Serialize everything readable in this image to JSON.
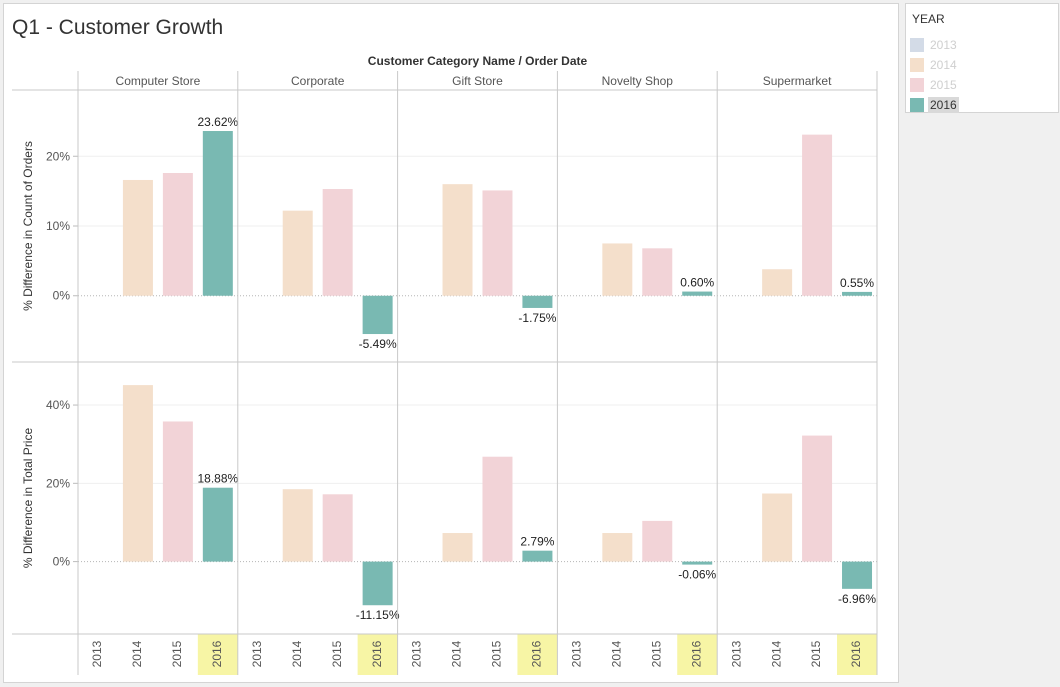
{
  "dashboard": {
    "title": "Q1 - Customer Growth"
  },
  "legend": {
    "title": "YEAR",
    "items": [
      {
        "label": "2013",
        "color": "#d3dbe7",
        "active": false
      },
      {
        "label": "2014",
        "color": "#f4dfcb",
        "active": false
      },
      {
        "label": "2015",
        "color": "#f2d3d7",
        "active": false
      },
      {
        "label": "2016",
        "color": "#79b9b2",
        "active": true
      }
    ]
  },
  "chart_data": {
    "type": "bar",
    "header": "Customer Category Name  /  Order Date",
    "panels": [
      "Computer Store",
      "Corporate",
      "Gift Store",
      "Novelty Shop",
      "Supermarket"
    ],
    "years": [
      "2013",
      "2014",
      "2015",
      "2016"
    ],
    "highlighted_year": "2016",
    "colors": {
      "2013": "#d3dbe7",
      "2014": "#f4dfcb",
      "2015": "#f2d3d7",
      "2016": "#79b9b2",
      "highlight_bg": "#f7f5a5"
    },
    "rows": [
      {
        "ylabel": "% Difference in Count of Orders",
        "ylim": [
          -0.095,
          0.295
        ],
        "ticks": [
          0,
          0.1,
          0.2
        ],
        "tick_labels": [
          "0%",
          "10%",
          "20%"
        ],
        "values": [
          [
            null,
            0.166,
            0.176,
            0.2362
          ],
          [
            null,
            0.122,
            0.153,
            -0.0549
          ],
          [
            null,
            0.16,
            0.151,
            -0.0175
          ],
          [
            null,
            0.075,
            0.068,
            0.006
          ],
          [
            null,
            0.038,
            0.231,
            0.0055
          ]
        ],
        "labels": [
          "23.62%",
          "-5.49%",
          "-1.75%",
          "0.60%",
          "0.55%"
        ]
      },
      {
        "ylabel": "% Difference in Total Price",
        "ylim": [
          -0.185,
          0.51
        ],
        "ticks": [
          0,
          0.2,
          0.4
        ],
        "tick_labels": [
          "0%",
          "20%",
          "40%"
        ],
        "values": [
          [
            null,
            0.451,
            0.358,
            0.1888
          ],
          [
            null,
            0.185,
            0.172,
            -0.1115
          ],
          [
            null,
            0.073,
            0.268,
            0.0279
          ],
          [
            null,
            0.073,
            0.104,
            -0.0006
          ],
          [
            null,
            0.174,
            0.322,
            -0.0696
          ]
        ],
        "labels": [
          "18.88%",
          "-11.15%",
          "2.79%",
          "-0.06%",
          "-6.96%"
        ]
      }
    ]
  }
}
